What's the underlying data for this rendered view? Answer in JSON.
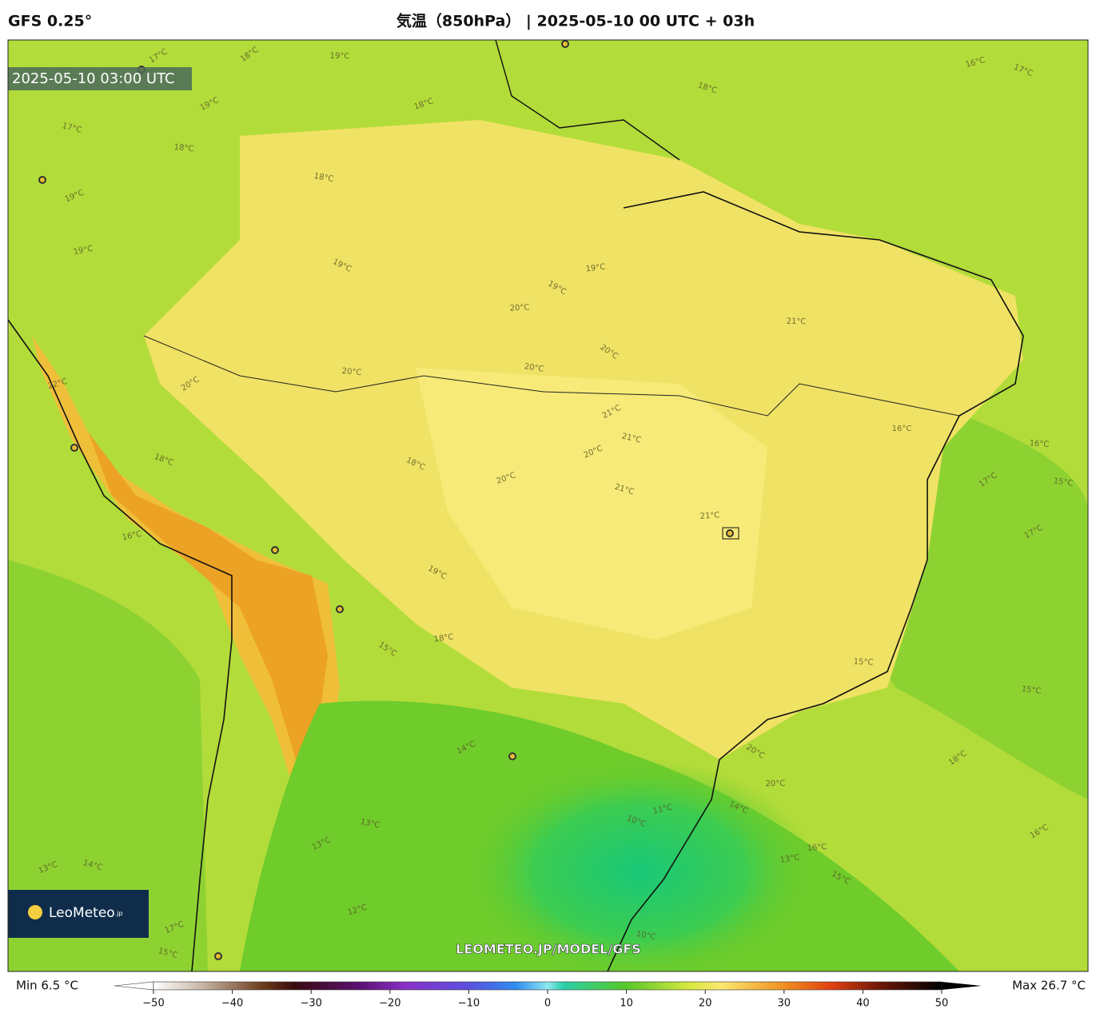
{
  "header": {
    "model": "GFS 0.25°",
    "title": "気温（850hPa） | 2025-05-10 00 UTC + 03h"
  },
  "map": {
    "timestamp": "2025-05-10 03:00 UTC",
    "logo": {
      "name": "LeoMeteo",
      "suffix": ".jp"
    },
    "watermark": "LEOMETEO.JP/MODEL/GFS",
    "contour_labels": [
      "18°C",
      "19°C",
      "17°C",
      "18°C",
      "19°C",
      "18°C",
      "19°C",
      "17°C",
      "18°C",
      "18°C",
      "16°C",
      "17°C",
      "19°C",
      "19°C",
      "19°C",
      "19°C",
      "20°C",
      "20°C",
      "21°C",
      "20°C",
      "20°C",
      "21°C",
      "20°C",
      "20°C",
      "21°C",
      "20°C",
      "21°C",
      "22°C",
      "18°C",
      "16°C",
      "18°C",
      "18°C",
      "19°C",
      "21°C",
      "15°C",
      "16°C",
      "17°C",
      "16°C",
      "17°C",
      "15°C",
      "14°C",
      "13°C",
      "13°C",
      "14°C",
      "12°C",
      "10°C",
      "11°C",
      "14°C",
      "13°C",
      "15°C",
      "16°C",
      "20°C",
      "20°C",
      "18°C",
      "15°C",
      "16°C",
      "15°C",
      "13°C",
      "10°C",
      "17°C",
      "15°C"
    ]
  },
  "colorbar": {
    "min_label": "Min 6.5 °C",
    "max_label": "Max 26.7 °C",
    "range": [
      -50,
      50
    ],
    "ticks": [
      {
        "value": -50,
        "label": "−50"
      },
      {
        "value": -40,
        "label": "−40"
      },
      {
        "value": -30,
        "label": "−30"
      },
      {
        "value": -20,
        "label": "−20"
      },
      {
        "value": -10,
        "label": "−10"
      },
      0,
      10,
      20,
      30,
      40,
      50
    ]
  }
}
